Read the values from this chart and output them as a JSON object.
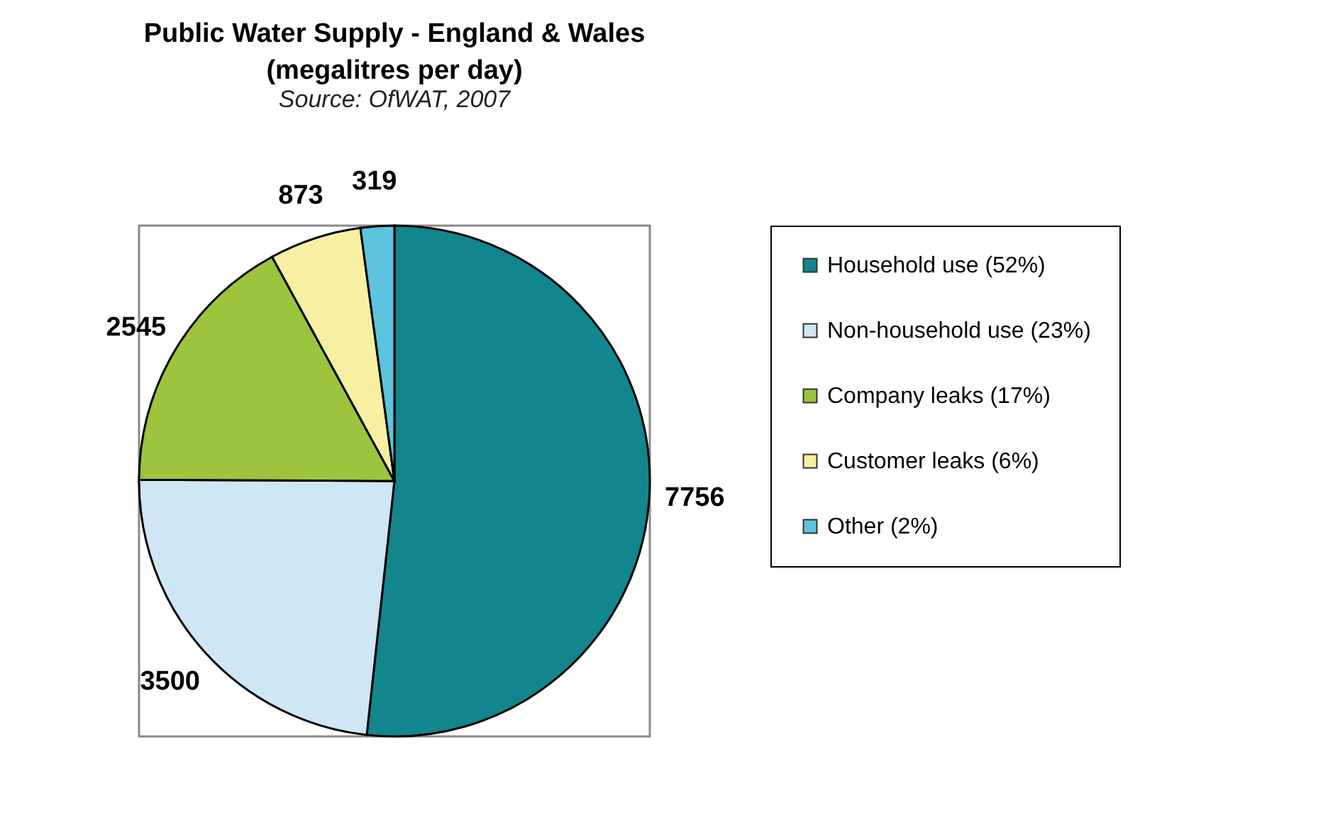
{
  "chart_data": {
    "type": "pie",
    "title": "Public Water Supply - England & Wales",
    "subtitle": "(megalitres per day)",
    "annotations": [
      "Source: OfWAT, 2007"
    ],
    "categories": [
      "Household use (52%)",
      "Non-household use (23%)",
      "Company leaks (17%)",
      "Customer leaks (6%)",
      "Other (2%)"
    ],
    "values": [
      7756,
      3500,
      2545,
      873,
      319
    ],
    "colors": [
      "#12868c",
      "#cfe6f4",
      "#9cc43c",
      "#f7f0a2",
      "#5ec3dc"
    ],
    "data_labels": true,
    "legend": "right"
  }
}
